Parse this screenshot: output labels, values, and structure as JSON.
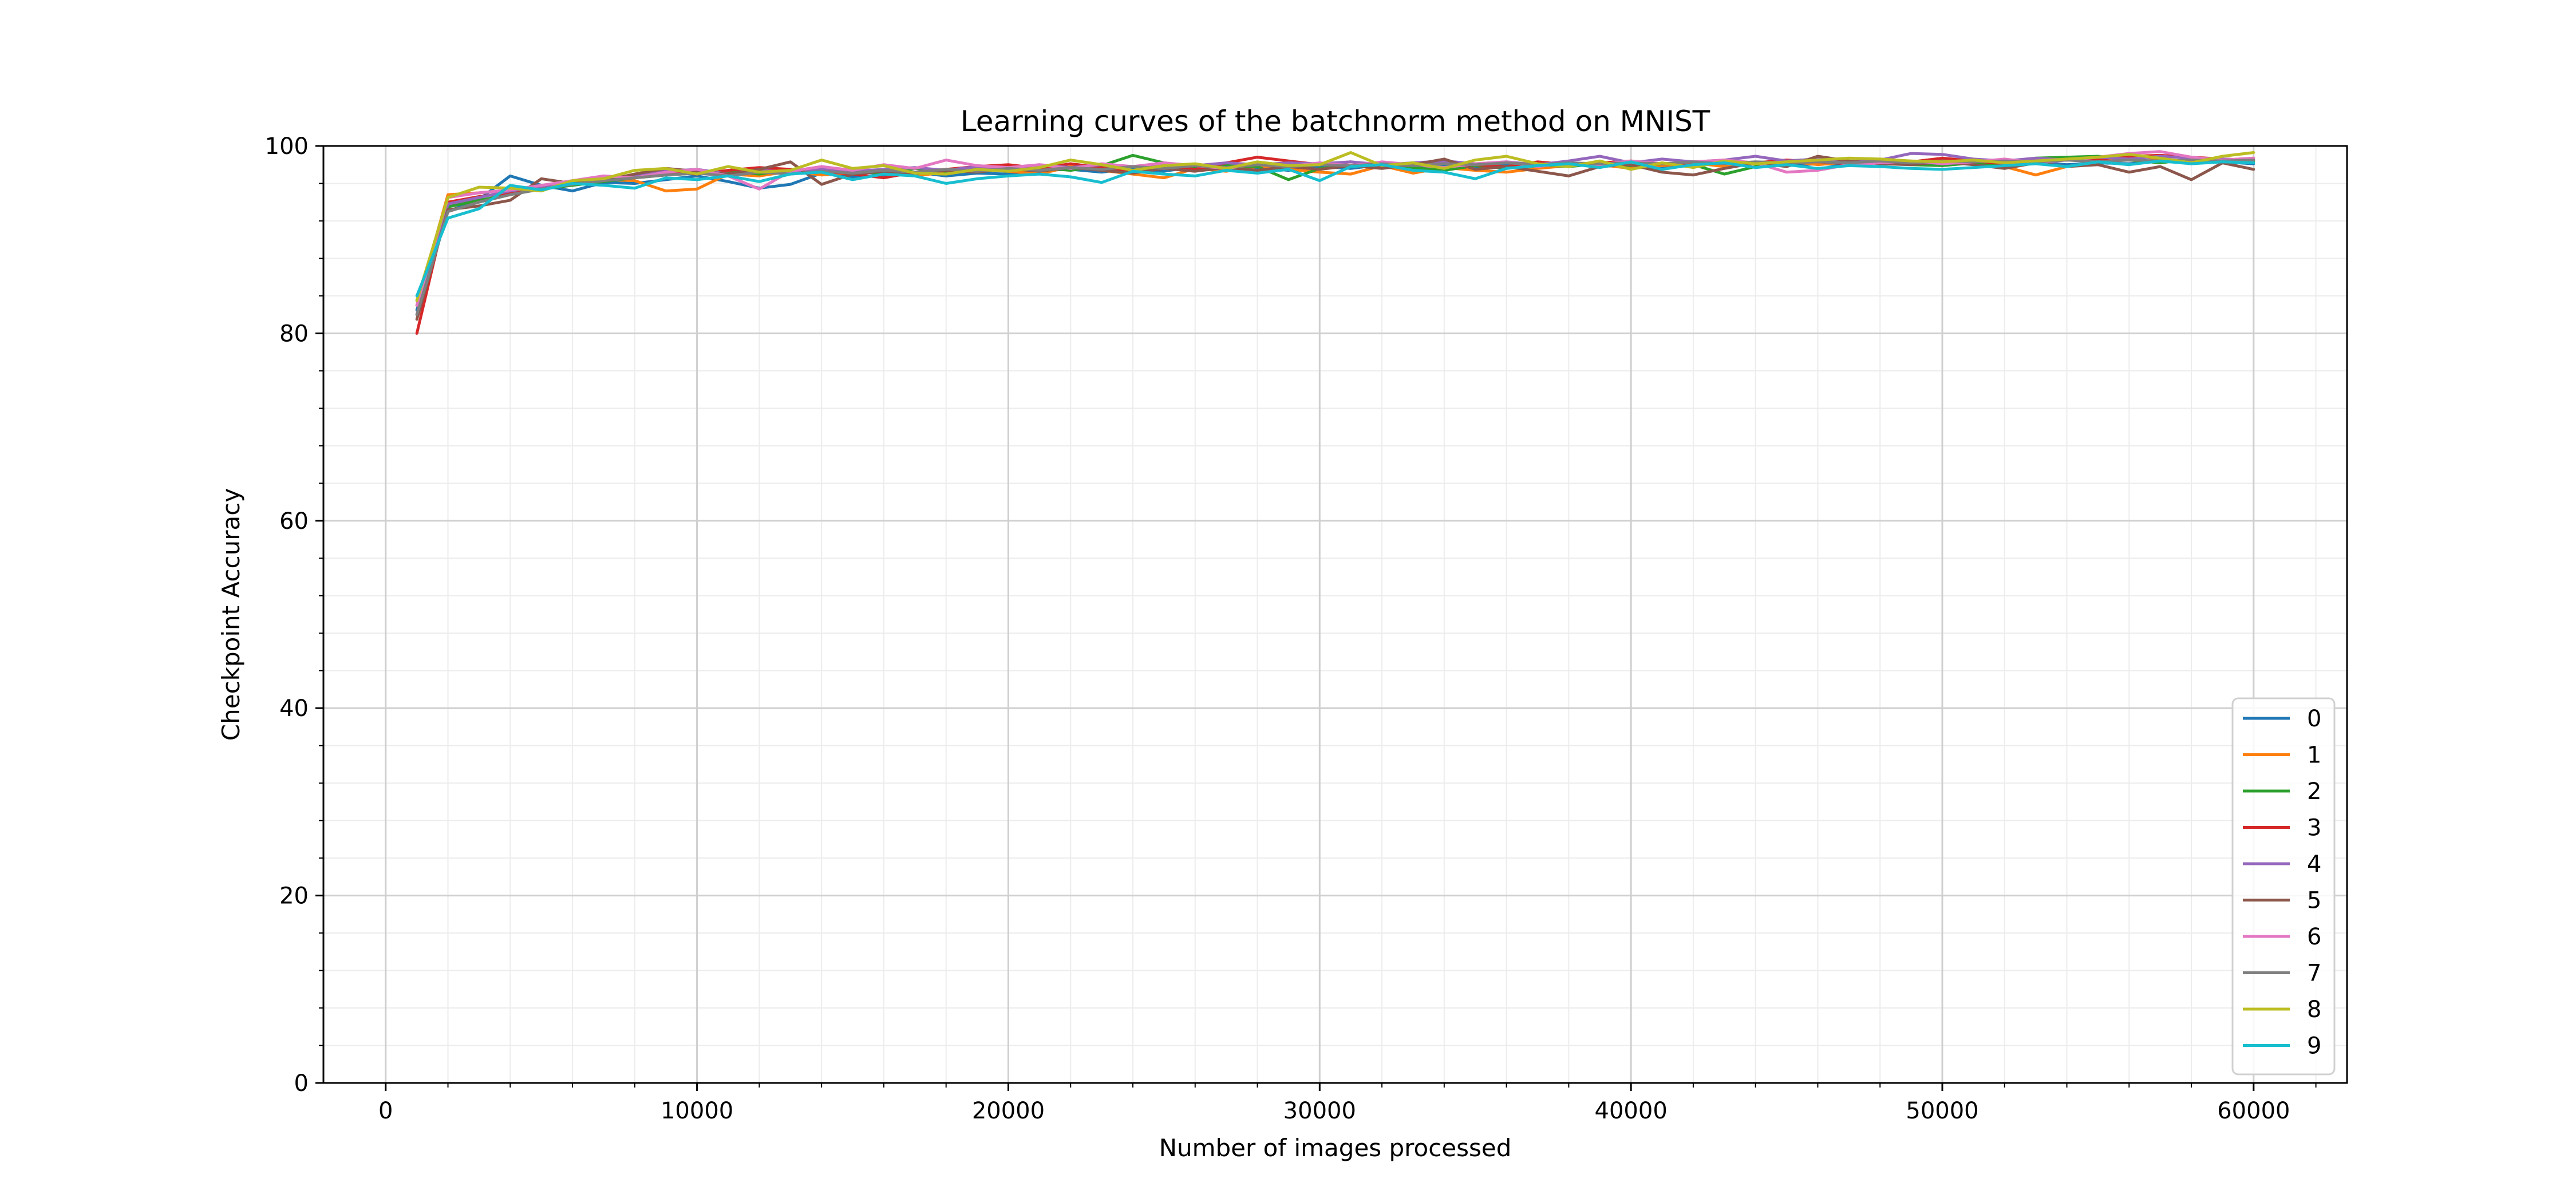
{
  "chart_data": {
    "type": "line",
    "title": "Learning curves of the batchnorm method on MNIST",
    "xlabel": "Number of images processed",
    "ylabel": "Checkpoint Accuracy",
    "xlim": [
      -2000,
      63000
    ],
    "ylim": [
      0,
      100
    ],
    "x_ticks": [
      0,
      10000,
      20000,
      30000,
      40000,
      50000,
      60000
    ],
    "x_tick_labels": [
      "0",
      "10000",
      "20000",
      "30000",
      "40000",
      "50000",
      "60000"
    ],
    "y_ticks": [
      0,
      20,
      40,
      60,
      80,
      100
    ],
    "y_tick_labels": [
      "0",
      "20",
      "40",
      "60",
      "80",
      "100"
    ],
    "grid": "major and minor",
    "legend_position": "lower-right",
    "x": [
      1000,
      2000,
      3000,
      4000,
      5000,
      6000,
      7000,
      8000,
      9000,
      10000,
      11000,
      12000,
      13000,
      14000,
      15000,
      16000,
      17000,
      18000,
      19000,
      20000,
      21000,
      22000,
      23000,
      24000,
      25000,
      26000,
      27000,
      28000,
      29000,
      30000,
      31000,
      32000,
      33000,
      34000,
      35000,
      36000,
      37000,
      38000,
      39000,
      40000,
      41000,
      42000,
      43000,
      44000,
      45000,
      46000,
      47000,
      48000,
      49000,
      50000,
      51000,
      52000,
      53000,
      54000,
      55000,
      56000,
      57000,
      58000,
      59000,
      60000
    ],
    "series": [
      {
        "name": "0",
        "color": "#1f77b4",
        "values": [
          82.5,
          93.0,
          94.3,
          96.8,
          95.8,
          95.2,
          96.1,
          96.0,
          96.4,
          96.8,
          96.2,
          95.5,
          95.9,
          97.1,
          96.7,
          96.9,
          97.2,
          96.8,
          97.1,
          97.0,
          97.4,
          97.5,
          97.2,
          97.6,
          97.3,
          97.8,
          97.5,
          97.7,
          97.4,
          97.8,
          97.6,
          98.0,
          97.7,
          97.9,
          97.6,
          98.0,
          97.8,
          98.1,
          97.9,
          98.0,
          97.7,
          98.1,
          98.0,
          98.2,
          97.9,
          98.1,
          98.0,
          98.2,
          98.1,
          98.0,
          98.2,
          98.1,
          98.3,
          98.0,
          98.2,
          98.1,
          98.4,
          98.2,
          98.3,
          98.1
        ]
      },
      {
        "name": "1",
        "color": "#ff7f0e",
        "values": [
          83.0,
          94.8,
          95.0,
          95.3,
          95.6,
          96.0,
          96.4,
          96.3,
          95.2,
          95.4,
          97.0,
          96.8,
          97.3,
          96.9,
          97.1,
          97.4,
          96.8,
          97.2,
          97.5,
          97.3,
          97.0,
          97.8,
          97.4,
          97.0,
          96.6,
          97.6,
          97.3,
          97.8,
          97.5,
          97.2,
          97.0,
          97.9,
          97.1,
          97.7,
          97.4,
          97.2,
          97.6,
          97.9,
          98.0,
          97.6,
          97.9,
          98.2,
          97.8,
          98.1,
          98.4,
          98.0,
          98.3,
          98.5,
          98.2,
          98.6,
          98.1,
          97.8,
          96.9,
          97.8,
          98.3,
          99.0,
          98.6,
          98.3,
          98.5,
          98.7
        ]
      },
      {
        "name": "2",
        "color": "#2ca02c",
        "values": [
          83.5,
          93.5,
          94.2,
          94.8,
          95.4,
          95.8,
          96.2,
          96.6,
          96.9,
          97.1,
          97.3,
          97.0,
          97.5,
          97.2,
          97.4,
          97.0,
          97.6,
          97.3,
          97.8,
          97.5,
          97.7,
          97.4,
          97.9,
          99.0,
          98.2,
          97.6,
          97.9,
          97.8,
          96.4,
          97.6,
          97.9,
          98.0,
          97.7,
          97.4,
          97.9,
          97.6,
          98.0,
          97.8,
          98.1,
          97.9,
          98.1,
          98.0,
          97.0,
          97.8,
          98.4,
          98.6,
          98.1,
          98.4,
          98.0,
          97.9,
          98.2,
          98.0,
          98.7,
          98.8,
          98.9,
          98.5,
          98.2,
          98.6,
          98.3,
          98.4
        ]
      },
      {
        "name": "3",
        "color": "#d62728",
        "values": [
          80.0,
          94.0,
          94.6,
          95.0,
          95.5,
          96.0,
          96.3,
          96.7,
          97.2,
          97.0,
          97.4,
          97.7,
          97.5,
          97.3,
          97.0,
          96.6,
          97.2,
          97.5,
          97.8,
          98.0,
          97.6,
          98.1,
          97.7,
          97.2,
          97.8,
          97.5,
          98.2,
          98.8,
          98.4,
          98.0,
          98.3,
          97.9,
          98.2,
          98.1,
          98.0,
          97.8,
          98.3,
          98.0,
          98.2,
          98.4,
          98.1,
          98.0,
          98.3,
          98.2,
          98.5,
          98.3,
          98.1,
          98.6,
          98.3,
          98.7,
          98.4,
          98.1,
          98.3,
          98.5,
          98.6,
          98.9,
          99.0,
          98.8,
          98.6,
          98.5
        ]
      },
      {
        "name": "4",
        "color": "#9467bd",
        "values": [
          82.0,
          93.8,
          94.5,
          95.2,
          95.7,
          96.1,
          96.5,
          96.9,
          97.3,
          97.5,
          97.0,
          97.4,
          97.2,
          97.6,
          97.3,
          97.5,
          97.7,
          97.4,
          97.8,
          97.6,
          98.0,
          97.7,
          98.0,
          97.8,
          98.1,
          97.9,
          98.2,
          98.0,
          98.2,
          98.1,
          98.3,
          98.0,
          98.2,
          98.4,
          98.1,
          98.3,
          98.0,
          98.4,
          98.9,
          98.2,
          98.6,
          98.3,
          98.5,
          98.9,
          98.4,
          98.6,
          98.3,
          98.5,
          99.2,
          99.1,
          98.6,
          98.4,
          98.7,
          98.5,
          98.8,
          98.6,
          98.9,
          98.7,
          98.6,
          98.5
        ]
      },
      {
        "name": "5",
        "color": "#8c564b",
        "values": [
          81.5,
          93.2,
          93.6,
          94.2,
          96.5,
          96.0,
          96.3,
          97.0,
          97.6,
          97.3,
          97.0,
          97.5,
          98.3,
          95.9,
          97.0,
          97.3,
          97.0,
          97.4,
          97.2,
          97.6,
          97.3,
          97.7,
          97.4,
          97.1,
          97.6,
          97.3,
          97.7,
          97.4,
          97.8,
          97.5,
          97.9,
          97.6,
          98.0,
          98.6,
          97.5,
          97.8,
          97.3,
          96.8,
          97.8,
          98.0,
          97.2,
          96.9,
          97.6,
          98.2,
          97.8,
          98.9,
          98.4,
          98.1,
          98.0,
          98.3,
          98.0,
          97.6,
          98.2,
          97.8,
          98.0,
          97.2,
          97.8,
          96.4,
          98.2,
          97.5
        ]
      },
      {
        "name": "6",
        "color": "#e377c2",
        "values": [
          83.0,
          94.5,
          95.0,
          95.3,
          95.8,
          96.3,
          96.8,
          96.6,
          97.2,
          97.5,
          96.8,
          95.4,
          97.3,
          97.8,
          97.4,
          98.0,
          97.6,
          98.5,
          97.9,
          97.7,
          98.0,
          97.6,
          98.1,
          97.8,
          98.2,
          97.9,
          97.6,
          98.1,
          97.8,
          98.2,
          97.9,
          98.3,
          98.0,
          97.7,
          98.1,
          98.3,
          97.8,
          98.2,
          98.0,
          98.4,
          98.1,
          98.3,
          98.5,
          98.2,
          97.2,
          97.4,
          98.0,
          98.2,
          98.4,
          98.1,
          98.3,
          98.6,
          98.2,
          98.5,
          98.8,
          99.2,
          99.4,
          98.8,
          98.5,
          98.7
        ]
      },
      {
        "name": "7",
        "color": "#7f7f7f",
        "values": [
          82.0,
          93.0,
          94.0,
          94.8,
          95.4,
          95.9,
          96.3,
          96.6,
          96.9,
          97.1,
          96.8,
          97.2,
          97.0,
          97.3,
          97.1,
          97.4,
          97.2,
          97.5,
          97.3,
          97.6,
          97.4,
          97.7,
          97.5,
          97.8,
          97.6,
          97.9,
          97.7,
          98.0,
          97.8,
          98.0,
          97.9,
          98.1,
          97.9,
          98.1,
          98.0,
          98.2,
          98.0,
          98.2,
          98.1,
          98.2,
          98.1,
          98.3,
          98.1,
          98.3,
          98.2,
          98.3,
          98.2,
          98.4,
          98.2,
          98.4,
          98.3,
          98.4,
          98.3,
          98.5,
          98.3,
          98.5,
          98.4,
          98.5,
          98.4,
          98.5
        ]
      },
      {
        "name": "8",
        "color": "#bcbd22",
        "values": [
          83.5,
          94.5,
          95.6,
          95.5,
          95.2,
          96.3,
          96.5,
          97.4,
          97.6,
          97.0,
          97.8,
          97.2,
          97.4,
          98.5,
          97.6,
          97.9,
          97.1,
          97.0,
          97.5,
          97.3,
          97.7,
          98.5,
          98.0,
          97.4,
          97.9,
          98.1,
          97.6,
          98.3,
          97.9,
          98.0,
          99.3,
          97.9,
          98.2,
          97.6,
          98.5,
          98.9,
          98.1,
          97.8,
          98.4,
          97.5,
          98.2,
          97.7,
          98.4,
          98.1,
          98.3,
          98.5,
          98.7,
          98.6,
          98.4,
          98.3,
          98.5,
          98.2,
          98.4,
          98.6,
          98.8,
          99.1,
          98.7,
          98.2,
          98.9,
          99.3
        ]
      },
      {
        "name": "9",
        "color": "#17becf",
        "values": [
          84.0,
          92.3,
          93.3,
          95.8,
          95.3,
          96.0,
          95.8,
          95.5,
          96.6,
          96.4,
          96.8,
          96.2,
          97.0,
          97.2,
          96.4,
          97.0,
          96.8,
          96.0,
          96.5,
          96.8,
          97.0,
          96.7,
          96.1,
          97.3,
          97.0,
          96.8,
          97.4,
          97.1,
          97.5,
          96.3,
          97.8,
          98.0,
          97.4,
          97.2,
          96.5,
          97.6,
          97.9,
          98.1,
          97.7,
          98.3,
          97.5,
          98.0,
          98.2,
          97.7,
          98.0,
          97.6,
          97.9,
          97.8,
          97.6,
          97.5,
          97.7,
          97.9,
          98.1,
          97.8,
          98.3,
          98.0,
          98.4,
          98.1,
          98.3,
          98.2
        ]
      }
    ]
  }
}
